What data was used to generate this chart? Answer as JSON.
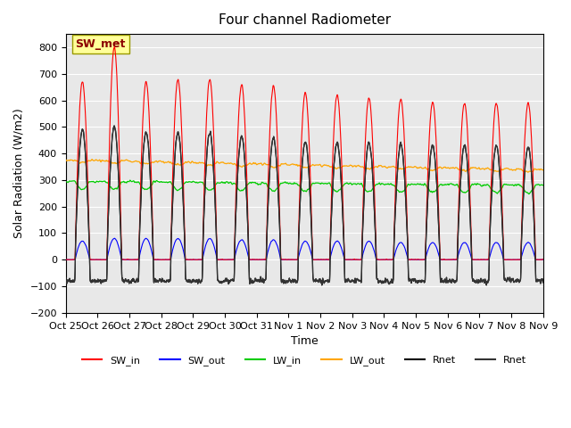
{
  "title": "Four channel Radiometer",
  "xlabel": "Time",
  "ylabel": "Solar Radiation (W/m2)",
  "ylim": [
    -200,
    850
  ],
  "yticks": [
    -200,
    -100,
    0,
    100,
    200,
    300,
    400,
    500,
    600,
    700,
    800
  ],
  "xtick_labels": [
    "Oct 25",
    "Oct 26",
    "Oct 27",
    "Oct 28",
    "Oct 29",
    "Oct 30",
    "Oct 31",
    "Nov 1",
    "Nov 2",
    "Nov 3",
    "Nov 4",
    "Nov 5",
    "Nov 6",
    "Nov 7",
    "Nov 8",
    "Nov 9"
  ],
  "annotation_text": "SW_met",
  "annotation_color": "#8B0000",
  "annotation_bg": "#FFFF99",
  "bg_color": "#E8E8E8",
  "line_colors": {
    "SW_in": "#FF0000",
    "SW_out": "#0000FF",
    "LW_in": "#00CC00",
    "LW_out": "#FFA500",
    "Rnet1": "#000000",
    "Rnet2": "#333333"
  },
  "legend_entries": [
    "SW_in",
    "SW_out",
    "LW_in",
    "LW_out",
    "Rnet",
    "Rnet"
  ],
  "legend_colors": [
    "#FF0000",
    "#0000FF",
    "#00CC00",
    "#FFA500",
    "#000000",
    "#333333"
  ],
  "n_days": 15,
  "day_hours": 24,
  "pts_per_hour": 6
}
